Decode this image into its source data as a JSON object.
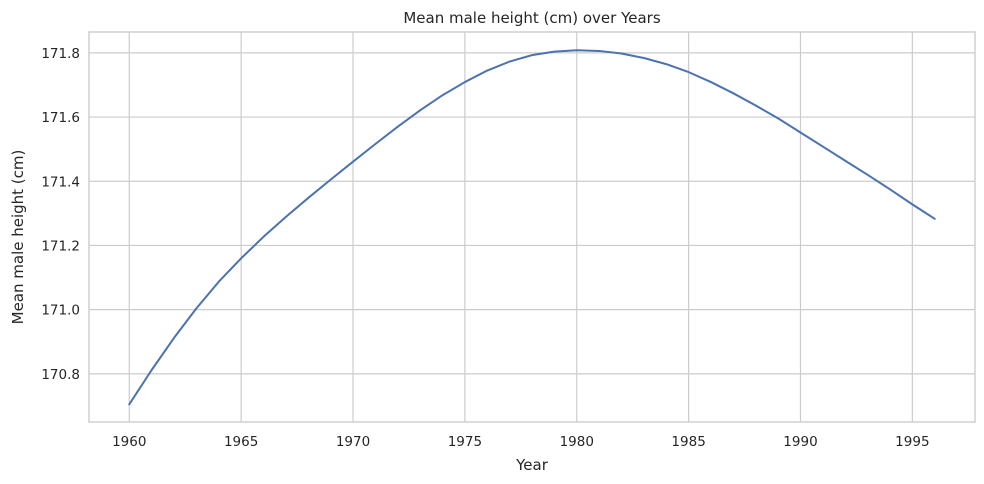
{
  "chart_data": {
    "type": "line",
    "title": "Mean male height (cm) over Years",
    "xlabel": "Year",
    "ylabel": "Mean male height (cm)",
    "xlim": [
      1958.2,
      1997.8
    ],
    "ylim": [
      170.65,
      171.865
    ],
    "xticks": [
      1960,
      1965,
      1970,
      1975,
      1980,
      1985,
      1990,
      1995
    ],
    "yticks": [
      170.8,
      171.0,
      171.2,
      171.4,
      171.6,
      171.8
    ],
    "grid": true,
    "legend": "none",
    "series": [
      {
        "color": "#4c72b0",
        "x": [
          1960,
          1961,
          1962,
          1963,
          1964,
          1965,
          1966,
          1967,
          1968,
          1969,
          1970,
          1971,
          1972,
          1973,
          1974,
          1975,
          1976,
          1977,
          1978,
          1979,
          1980,
          1981,
          1982,
          1983,
          1984,
          1985,
          1986,
          1987,
          1988,
          1989,
          1990,
          1991,
          1992,
          1993,
          1994,
          1995,
          1996
        ],
        "y": [
          170.705,
          170.812,
          170.912,
          171.004,
          171.087,
          171.16,
          171.227,
          171.289,
          171.348,
          171.405,
          171.461,
          171.516,
          171.57,
          171.621,
          171.668,
          171.709,
          171.745,
          171.773,
          171.793,
          171.804,
          171.808,
          171.806,
          171.798,
          171.784,
          171.765,
          171.74,
          171.709,
          171.674,
          171.636,
          171.596,
          171.552,
          171.508,
          171.464,
          171.42,
          171.375,
          171.328,
          171.283
        ]
      }
    ]
  }
}
